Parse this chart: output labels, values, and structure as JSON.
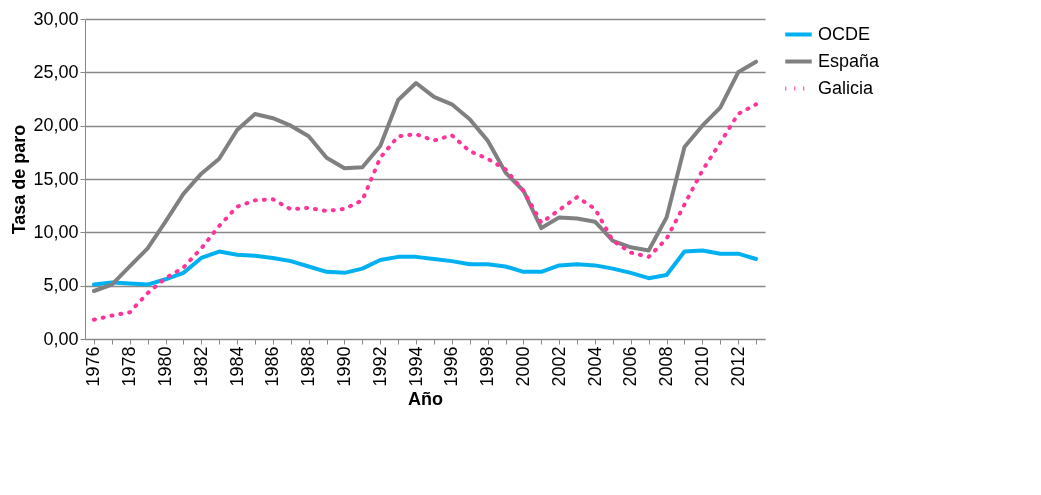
{
  "chart_data": {
    "type": "line",
    "xlabel": "Año",
    "ylabel": "Tasa de paro",
    "categories": [
      "1976",
      null,
      "1978",
      null,
      "1980",
      null,
      "1982",
      null,
      "1984",
      null,
      "1986",
      null,
      "1988",
      null,
      "1990",
      null,
      "1992",
      null,
      "1994",
      null,
      "1996",
      null,
      "1998",
      null,
      "2000",
      null,
      "2002",
      null,
      "2004",
      null,
      "2006",
      null,
      "2008",
      null,
      "2010",
      null,
      "2012",
      null
    ],
    "series": [
      {
        "name": "OCDE",
        "color": "#00b0f0",
        "line_style": "solid",
        "values": [
          5.1,
          5.3,
          5.2,
          5.1,
          5.6,
          6.2,
          7.6,
          8.2,
          7.9,
          7.8,
          7.6,
          7.3,
          6.8,
          6.3,
          6.2,
          6.6,
          7.4,
          7.7,
          7.7,
          7.5,
          7.3,
          7.0,
          7.0,
          6.8,
          6.3,
          6.3,
          6.9,
          7.0,
          6.9,
          6.6,
          6.2,
          5.7,
          6.0,
          8.2,
          8.3,
          8.0,
          8.0,
          7.5
        ]
      },
      {
        "name": "España",
        "color": "#808080",
        "line_style": "solid",
        "values": [
          4.5,
          5.1,
          6.8,
          8.5,
          11.0,
          13.6,
          15.5,
          16.9,
          19.6,
          21.1,
          20.7,
          20.0,
          19.0,
          17.0,
          16.0,
          16.1,
          18.1,
          22.4,
          24.0,
          22.7,
          22.0,
          20.6,
          18.6,
          15.6,
          13.9,
          10.4,
          11.4,
          11.3,
          11.0,
          9.2,
          8.6,
          8.3,
          11.4,
          18.0,
          20.0,
          21.7,
          25.0,
          26.0
        ]
      },
      {
        "name": "Galicia",
        "color": "#ff3399",
        "line_style": "dotted",
        "values": [
          1.8,
          2.2,
          2.5,
          4.3,
          5.7,
          6.7,
          8.5,
          10.6,
          12.4,
          13.0,
          13.1,
          12.15,
          12.3,
          12.0,
          12.2,
          13.0,
          17.0,
          19.0,
          19.2,
          18.6,
          19.1,
          17.6,
          16.9,
          15.9,
          13.9,
          10.9,
          12.1,
          13.3,
          12.2,
          9.2,
          8.1,
          7.7,
          9.4,
          12.6,
          15.8,
          18.4,
          21.1,
          22.0
        ]
      }
    ],
    "ylim": [
      0,
      30
    ],
    "yticks": [
      {
        "value": 0,
        "label": "0,00"
      },
      {
        "value": 5,
        "label": "5,00"
      },
      {
        "value": 10,
        "label": "10,00"
      },
      {
        "value": 15,
        "label": "15,00"
      },
      {
        "value": 20,
        "label": "20,00"
      },
      {
        "value": 25,
        "label": "25,00"
      },
      {
        "value": 30,
        "label": "30,00"
      }
    ],
    "grid": "y",
    "legend": "right",
    "marker": "none"
  }
}
